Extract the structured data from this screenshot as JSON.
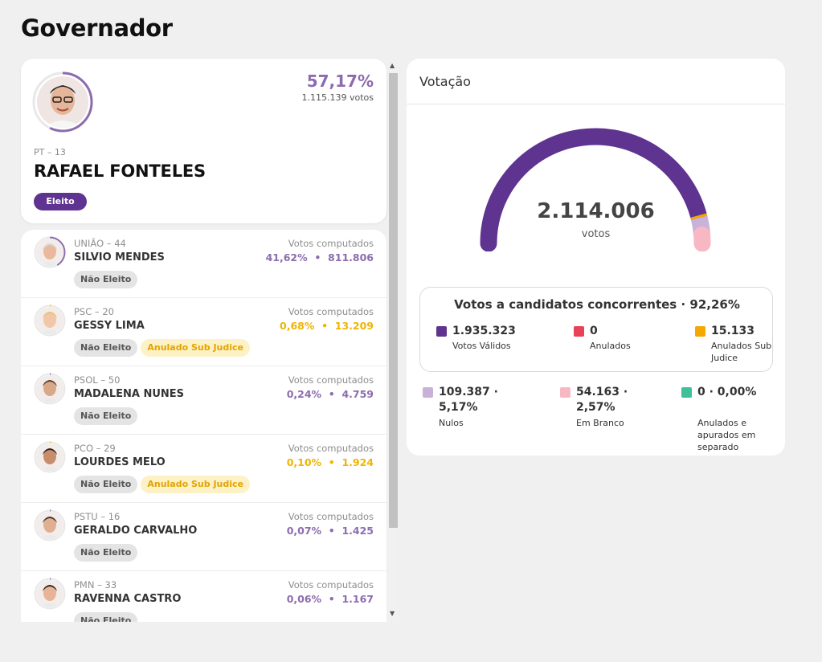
{
  "page": {
    "title": "Governador"
  },
  "winner": {
    "pct": "57,17%",
    "pct_value": 0.5717,
    "votes": "1.115.139 votos",
    "party": "PT – 13",
    "name": "RAFAEL FONTELES",
    "status": "Eleito"
  },
  "candidates": [
    {
      "party": "UNIÃO – 44",
      "name": "SILVIO MENDES",
      "label": "Votos computados",
      "value": "41,62%  •  811.806",
      "value_color": "#8c6cae",
      "ring": 0.4162,
      "badges": [
        {
          "text": "Não Eleito",
          "kind": "gray"
        }
      ]
    },
    {
      "party": "PSC – 20",
      "name": "GESSY LIMA",
      "label": "Votos computados",
      "value": "0,68%  •  13.209",
      "value_color": "#f0b400",
      "ring": 0.0068,
      "badges": [
        {
          "text": "Não Eleito",
          "kind": "gray"
        },
        {
          "text": "Anulado Sub Judice",
          "kind": "yellow"
        }
      ]
    },
    {
      "party": "PSOL – 50",
      "name": "MADALENA NUNES",
      "label": "Votos computados",
      "value": "0,24%  •  4.759",
      "value_color": "#8c6cae",
      "ring": 0.0024,
      "badges": [
        {
          "text": "Não Eleito",
          "kind": "gray"
        }
      ]
    },
    {
      "party": "PCO – 29",
      "name": "LOURDES MELO",
      "label": "Votos computados",
      "value": "0,10%  •  1.924",
      "value_color": "#f0b400",
      "ring": 0.001,
      "badges": [
        {
          "text": "Não Eleito",
          "kind": "gray"
        },
        {
          "text": "Anulado Sub Judice",
          "kind": "yellow"
        }
      ]
    },
    {
      "party": "PSTU – 16",
      "name": "GERALDO CARVALHO",
      "label": "Votos computados",
      "value": "0,07%  •  1.425",
      "value_color": "#8c6cae",
      "ring": 0.0007,
      "badges": [
        {
          "text": "Não Eleito",
          "kind": "gray"
        }
      ]
    },
    {
      "party": "PMN – 33",
      "name": "RAVENNA CASTRO",
      "label": "Votos computados",
      "value": "0,06%  •  1.167",
      "value_color": "#8c6cae",
      "ring": 0.0006,
      "badges": [
        {
          "text": "Não Eleito",
          "kind": "gray"
        }
      ]
    }
  ],
  "votacao": {
    "title": "Votação",
    "total": "2.114.006",
    "unit": "votos",
    "gauge_segments": [
      {
        "name": "Votos Válidos",
        "fraction": 0.9155,
        "color": "#5f3390"
      },
      {
        "name": "Anulados Sub Judice",
        "fraction": 0.0072,
        "color": "#f5a800"
      },
      {
        "name": "Nulos",
        "fraction": 0.0517,
        "color": "#c8b2d9"
      },
      {
        "name": "Em Branco",
        "fraction": 0.0256,
        "color": "#f7b8c4"
      }
    ],
    "summary_title": "Votos a candidatos concorrentes · 92,26%",
    "stats_inner": [
      {
        "num": "1.935.323",
        "label": "Votos Válidos",
        "color": "#5f3390"
      },
      {
        "num": "0",
        "label": "Anulados",
        "color": "#e8415a"
      },
      {
        "num": "15.133",
        "label": "Anulados Sub Judice",
        "color": "#f5a800"
      }
    ],
    "stats_outer": [
      {
        "num": "109.387 · 5,17%",
        "label": "Nulos",
        "color": "#c8b2d9"
      },
      {
        "num": "54.163 · 2,57%",
        "label": "Em Branco",
        "color": "#f7b8c4"
      },
      {
        "num": "0 · 0,00%",
        "label": "Anulados e apurados em separado",
        "color": "#3fbf9a"
      }
    ]
  },
  "colors": {
    "accent": "#5f3390",
    "accent_light": "#8c6cae",
    "warning": "#f0b400"
  }
}
